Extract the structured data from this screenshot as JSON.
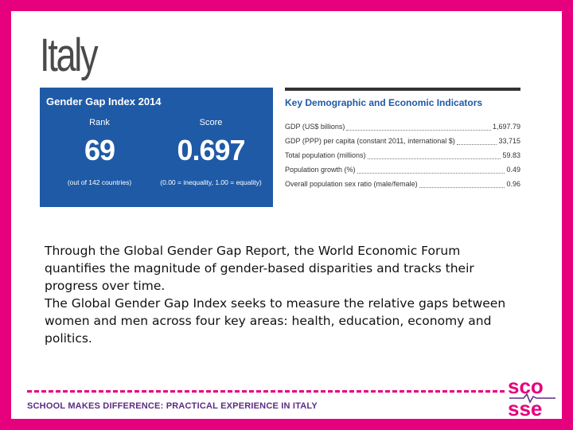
{
  "country": "Italy",
  "gender_gap": {
    "title": "Gender Gap Index 2014",
    "rank_label": "Rank",
    "rank_value": "69",
    "rank_note": "(out of 142 countries)",
    "score_label": "Score",
    "score_value": "0.697",
    "score_note": "(0.00 = inequality, 1.00 = equality)"
  },
  "indicators": {
    "title": "Key Demographic and Economic Indicators",
    "rows": [
      {
        "label": "GDP (US$ billions)",
        "value": "1,697.79"
      },
      {
        "label": "GDP (PPP) per capita (constant 2011, international $)",
        "value": "33,715"
      },
      {
        "label": "Total population (millions)",
        "value": "59.83"
      },
      {
        "label": "Population growth (%)",
        "value": "0.49"
      },
      {
        "label": "Overall population sex ratio (male/female)",
        "value": "0.96"
      }
    ]
  },
  "body": {
    "paragraph1": "Through the Global Gender Gap Report, the World Economic Forum quantifies the magnitude of gender-based disparities and tracks their progress over time.",
    "paragraph2": "The Global Gender Gap Index seeks to measure the relative gaps between women and men across four key areas: health, education, economy and politics."
  },
  "footer": {
    "text": "SCHOOL MAKES DIFFERENCE: PRACTICAL EXPERIENCE IN ITALY",
    "logo_line1": "sco",
    "logo_line2": "sse"
  },
  "colors": {
    "frame": "#e6007e",
    "panel": "#1f5aa6",
    "footer_text": "#5b2d82"
  }
}
